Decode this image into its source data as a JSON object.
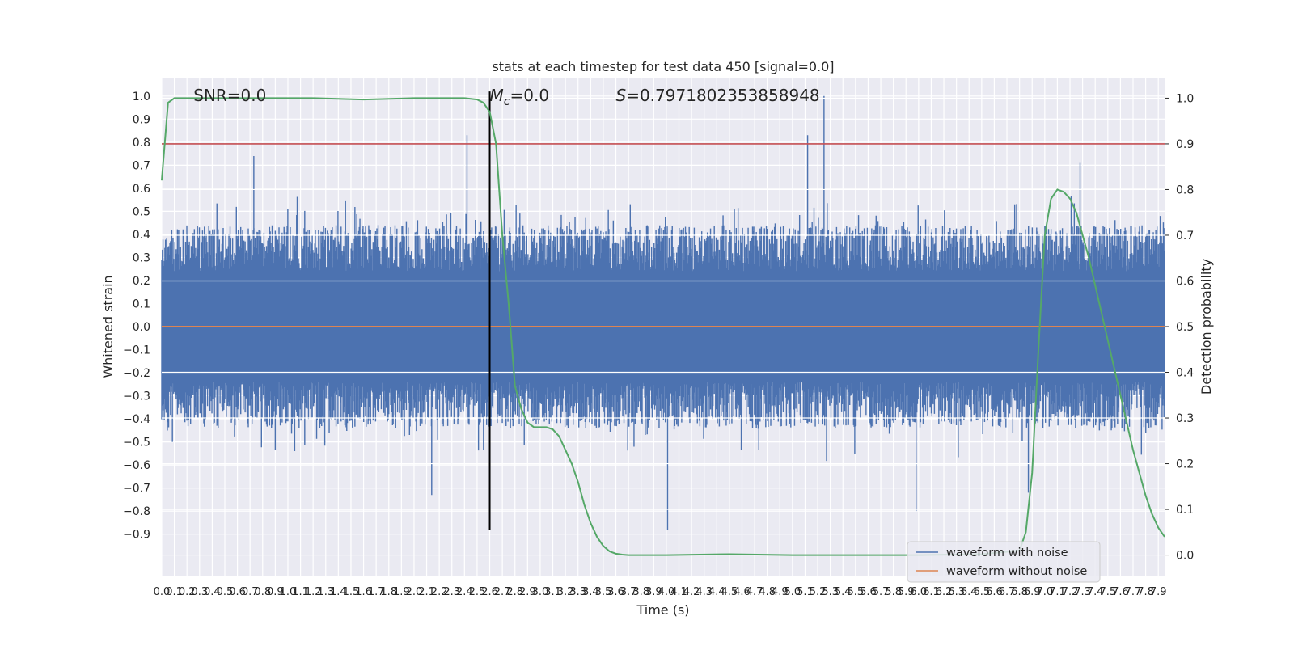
{
  "chart_data": {
    "type": "line",
    "title": "stats at each timestep for test data 450 [signal=0.0]",
    "xlabel": "Time (s)",
    "ylabel": "Whitened strain",
    "y2label": "Detection probability",
    "xlim": [
      0.0,
      7.95
    ],
    "ylim": [
      -1.08,
      1.08
    ],
    "y2lim": [
      -0.045,
      1.045
    ],
    "grid": true,
    "legend_position": "lower-right",
    "x_ticks": [
      "0.0",
      "0.1",
      "0.2",
      "0.3",
      "0.4",
      "0.5",
      "0.6",
      "0.7",
      "0.8",
      "0.9",
      "1.0",
      "1.1",
      "1.2",
      "1.3",
      "1.4",
      "1.5",
      "1.6",
      "1.7",
      "1.8",
      "1.9",
      "2.0",
      "2.1",
      "2.2",
      "2.3",
      "2.4",
      "2.5",
      "2.6",
      "2.7",
      "2.8",
      "2.9",
      "3.0",
      "3.1",
      "3.2",
      "3.3",
      "3.4",
      "3.5",
      "3.6",
      "3.7",
      "3.8",
      "3.9",
      "4.0",
      "4.1",
      "4.2",
      "4.3",
      "4.4",
      "4.5",
      "4.6",
      "4.7",
      "4.8",
      "4.9",
      "5.0",
      "5.1",
      "5.2",
      "5.3",
      "5.4",
      "5.5",
      "5.6",
      "5.7",
      "5.8",
      "5.9",
      "6.0",
      "6.1",
      "6.2",
      "6.3",
      "6.4",
      "6.5",
      "6.6",
      "6.7",
      "6.8",
      "6.9",
      "7.0",
      "7.1",
      "7.2",
      "7.3",
      "7.4",
      "7.5",
      "7.6",
      "7.7",
      "7.8",
      "7.9"
    ],
    "y_ticks": [
      "-0.9",
      "-0.8",
      "-0.7",
      "-0.6",
      "-0.5",
      "-0.4",
      "-0.3",
      "-0.2",
      "-0.1",
      "0.0",
      "0.1",
      "0.2",
      "0.3",
      "0.4",
      "0.5",
      "0.6",
      "0.7",
      "0.8",
      "0.9",
      "1.0"
    ],
    "y2_ticks": [
      "0.0",
      "0.1",
      "0.2",
      "0.3",
      "0.4",
      "0.5",
      "0.6",
      "0.7",
      "0.8",
      "0.9",
      "1.0"
    ],
    "series": [
      {
        "name": "waveform with noise",
        "color": "#4c72b0",
        "description_values": "dense whitened noise, envelope roughly -0.55..0.55 with spikes",
        "peaks": [
          {
            "x": 2.42,
            "y": 0.83
          },
          {
            "x": 5.12,
            "y": 0.83
          },
          {
            "x": 5.25,
            "y": 1.0
          },
          {
            "x": 4.01,
            "y": -0.88
          },
          {
            "x": 2.14,
            "y": -0.73
          },
          {
            "x": 5.98,
            "y": -0.8
          },
          {
            "x": 7.28,
            "y": 0.71
          },
          {
            "x": 0.73,
            "y": 0.74
          },
          {
            "x": 6.87,
            "y": -0.72
          }
        ]
      },
      {
        "name": "waveform without noise",
        "color": "#dd8452",
        "x": [
          0.0,
          7.95
        ],
        "y": [
          0.0,
          0.0
        ]
      },
      {
        "name": "",
        "color": "#55a868",
        "axis": "right",
        "x": [
          0.0,
          0.05,
          0.1,
          0.2,
          0.4,
          0.8,
          1.2,
          1.6,
          2.0,
          2.4,
          2.5,
          2.55,
          2.6,
          2.65,
          2.7,
          2.75,
          2.8,
          2.85,
          2.9,
          2.95,
          3.0,
          3.05,
          3.1,
          3.15,
          3.2,
          3.25,
          3.3,
          3.35,
          3.4,
          3.45,
          3.5,
          3.55,
          3.6,
          3.65,
          3.7,
          3.8,
          4.0,
          4.5,
          5.0,
          5.5,
          6.0,
          6.5,
          6.8,
          6.85,
          6.9,
          6.95,
          7.0,
          7.05,
          7.1,
          7.15,
          7.2,
          7.25,
          7.3,
          7.35,
          7.4,
          7.45,
          7.5,
          7.55,
          7.6,
          7.65,
          7.7,
          7.75,
          7.8,
          7.85,
          7.9,
          7.95
        ],
        "y": [
          0.82,
          0.99,
          1.0,
          1.0,
          1.0,
          1.0,
          1.0,
          0.997,
          1.0,
          1.0,
          0.997,
          0.99,
          0.97,
          0.9,
          0.7,
          0.55,
          0.37,
          0.32,
          0.29,
          0.28,
          0.28,
          0.28,
          0.275,
          0.26,
          0.23,
          0.2,
          0.16,
          0.11,
          0.07,
          0.04,
          0.02,
          0.008,
          0.003,
          0.001,
          0.0,
          0.0,
          0.0,
          0.002,
          0.0,
          0.0,
          0.0,
          0.002,
          0.01,
          0.05,
          0.18,
          0.45,
          0.7,
          0.78,
          0.8,
          0.795,
          0.78,
          0.75,
          0.7,
          0.65,
          0.59,
          0.53,
          0.47,
          0.41,
          0.35,
          0.29,
          0.23,
          0.18,
          0.13,
          0.09,
          0.06,
          0.04
        ]
      },
      {
        "name": "",
        "color": "#c44e52",
        "axis": "right",
        "x": [
          0.0,
          7.95
        ],
        "y": [
          0.9,
          0.9
        ]
      }
    ],
    "annotations": [
      {
        "text": "SNR=0.0",
        "x": 0.2,
        "y": 1.0
      },
      {
        "text": "M_c=0.0",
        "mathBase": "M",
        "mathSub": "c",
        "suffix": "=0.0",
        "x": 2.6,
        "y": 1.0
      },
      {
        "text": "S=0.7971802353858948",
        "mathBase": "S",
        "suffix": "=0.7971802353858948",
        "x": 3.6,
        "y": 1.0
      }
    ],
    "vertical_line": {
      "x": 2.6,
      "color": "#000000"
    }
  }
}
